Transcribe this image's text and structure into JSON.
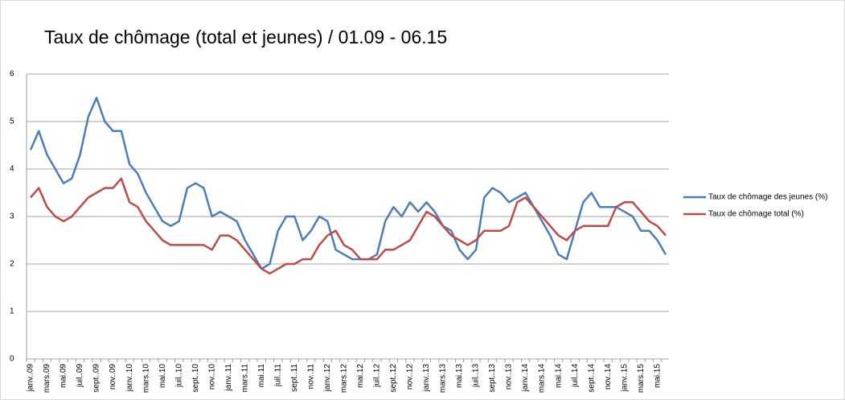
{
  "chart_data": {
    "type": "line",
    "title": "Taux de chômage (total et jeunes) / 01.09 - 06.15",
    "categories": [
      "janv..09",
      null,
      "mars.09",
      null,
      "mai.09",
      null,
      "juil..09",
      null,
      "sept..09",
      null,
      "nov..09",
      null,
      "janv..10",
      null,
      "mars.10",
      null,
      "mai.10",
      null,
      "juil..10",
      null,
      "sept..10",
      null,
      "nov..10",
      null,
      "janv..11",
      null,
      "mars.11",
      null,
      "mai.11",
      null,
      "juil..11",
      null,
      "sept..11",
      null,
      "nov..11",
      null,
      "janv..12",
      null,
      "mars.12",
      null,
      "mai.12",
      null,
      "juil..12",
      null,
      "sept..12",
      null,
      "nov..12",
      null,
      "janv..13",
      null,
      "mars.13",
      null,
      "mai.13",
      null,
      "juil..13",
      null,
      "sept..13",
      null,
      "nov..13",
      null,
      "janv..14",
      null,
      "mars.14",
      null,
      "mai.14",
      null,
      "juil..14",
      null,
      "sept..14",
      null,
      "nov..14",
      null,
      "janv..15",
      null,
      "mars.15",
      null,
      "mai.15",
      null
    ],
    "series": [
      {
        "name": "Taux de chômage des jeunes (%)",
        "color": "#4a7ebb",
        "values": [
          4.4,
          4.8,
          4.3,
          4.0,
          3.7,
          3.8,
          4.3,
          5.1,
          5.5,
          5.0,
          4.8,
          4.8,
          4.1,
          3.9,
          3.5,
          3.2,
          2.9,
          2.8,
          2.9,
          3.6,
          3.7,
          3.6,
          3.0,
          3.1,
          3.0,
          2.9,
          2.5,
          2.2,
          1.9,
          2.0,
          2.7,
          3.0,
          3.0,
          2.5,
          2.7,
          3.0,
          2.9,
          2.3,
          2.2,
          2.1,
          2.1,
          2.1,
          2.2,
          2.9,
          3.2,
          3.0,
          3.3,
          3.1,
          3.3,
          3.1,
          2.8,
          2.7,
          2.3,
          2.1,
          2.3,
          3.4,
          3.6,
          3.5,
          3.3,
          3.4,
          3.5,
          3.2,
          2.9,
          2.6,
          2.2,
          2.1,
          2.7,
          3.3,
          3.5,
          3.2,
          3.2,
          3.2,
          3.1,
          3.0,
          2.7,
          2.7,
          2.5,
          2.2
        ]
      },
      {
        "name": "Taux de chômage total (%)",
        "color": "#be4b48",
        "values": [
          3.4,
          3.6,
          3.2,
          3.0,
          2.9,
          3.0,
          3.2,
          3.4,
          3.5,
          3.6,
          3.6,
          3.8,
          3.3,
          3.2,
          2.9,
          2.7,
          2.5,
          2.4,
          2.4,
          2.4,
          2.4,
          2.4,
          2.3,
          2.6,
          2.6,
          2.5,
          2.3,
          2.1,
          1.9,
          1.8,
          1.9,
          2.0,
          2.0,
          2.1,
          2.1,
          2.4,
          2.6,
          2.7,
          2.4,
          2.3,
          2.1,
          2.1,
          2.1,
          2.3,
          2.3,
          2.4,
          2.5,
          2.8,
          3.1,
          3.0,
          2.8,
          2.6,
          2.5,
          2.4,
          2.5,
          2.7,
          2.7,
          2.7,
          2.8,
          3.3,
          3.4,
          3.2,
          3.0,
          2.8,
          2.6,
          2.5,
          2.7,
          2.8,
          2.8,
          2.8,
          2.8,
          3.2,
          3.3,
          3.3,
          3.1,
          2.9,
          2.8,
          2.6
        ]
      }
    ],
    "ylim": [
      0,
      6
    ],
    "yticks": [
      0,
      1,
      2,
      3,
      4,
      5,
      6
    ],
    "grid": true,
    "legend": "right"
  }
}
